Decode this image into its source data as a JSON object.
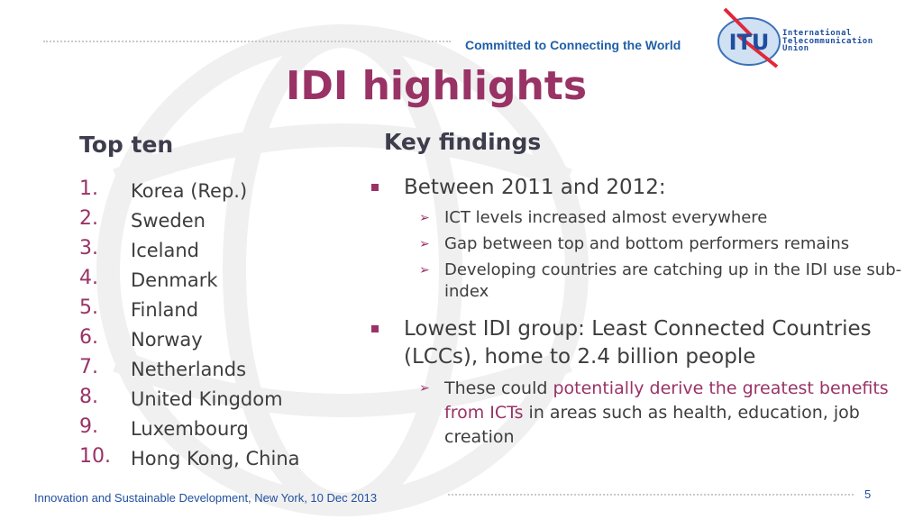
{
  "header": {
    "tagline": "Committed to Connecting the World",
    "logo_text": "ITU",
    "logo_name": [
      "International",
      "Telecommunication",
      "Union"
    ]
  },
  "title": "IDI highlights",
  "top_ten": {
    "heading": "Top ten",
    "items": [
      {
        "n": "1.",
        "name": "Korea (Rep.)"
      },
      {
        "n": "2.",
        "name": "Sweden"
      },
      {
        "n": "3.",
        "name": "Iceland"
      },
      {
        "n": "4.",
        "name": "Denmark"
      },
      {
        "n": "5.",
        "name": "Finland"
      },
      {
        "n": "6.",
        "name": "Norway"
      },
      {
        "n": "7.",
        "name": "Netherlands"
      },
      {
        "n": "8.",
        "name": "United Kingdom"
      },
      {
        "n": "9.",
        "name": "Luxembourg"
      },
      {
        "n": "10.",
        "name": "Hong Kong, China"
      }
    ]
  },
  "key_findings": {
    "heading": "Key findings",
    "b1": "Between 2011 and 2012:",
    "b1_sub": [
      "ICT levels increased almost everywhere",
      "Gap between top and bottom performers remains",
      "Developing countries are catching up in the IDI use sub-index"
    ],
    "b2": "Lowest IDI group: Least Connected Countries (LCCs), home to 2.4 billion people",
    "b2_sub_pre": "These could ",
    "b2_sub_hl": "potentially derive the greatest benefits from ICTs",
    "b2_sub_post": " in areas such as health, education, job creation"
  },
  "footer": {
    "text": "Innovation and Sustainable Development, New York, 10 Dec 2013",
    "page": "5"
  },
  "colors": {
    "accent": "#993366",
    "blue": "#1f4e9e"
  }
}
